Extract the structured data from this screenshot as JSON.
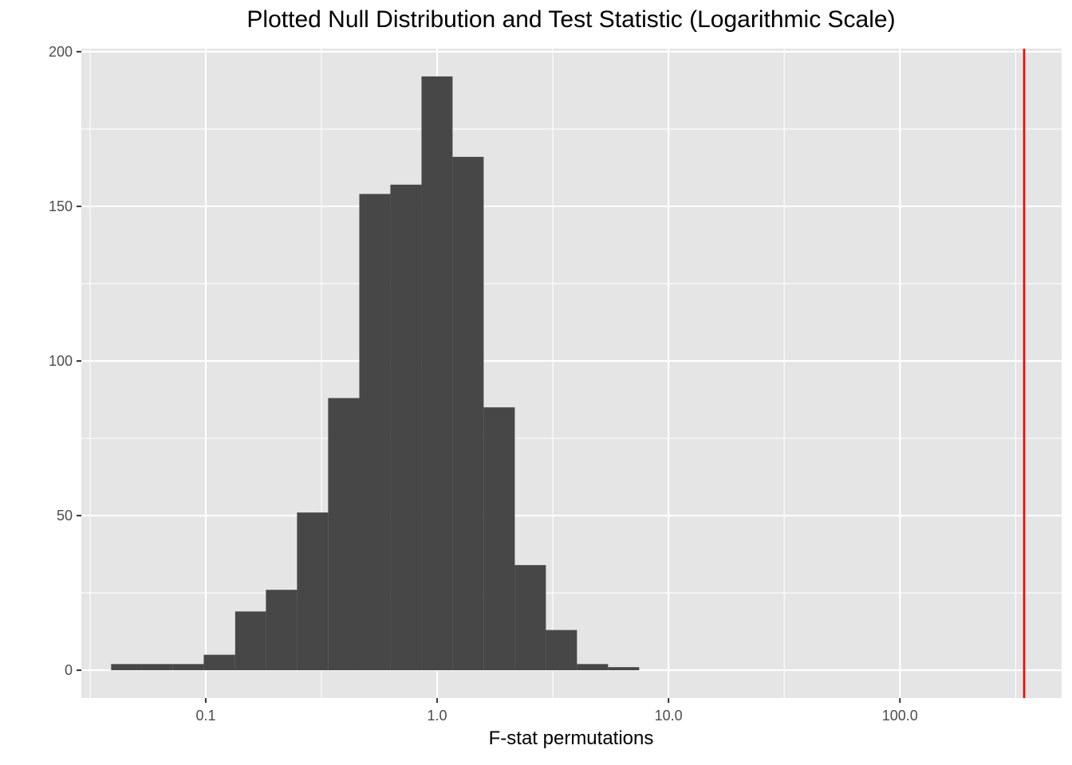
{
  "chart_data": {
    "type": "bar",
    "title": "Plotted Null Distribution and Test Statistic (Logarithmic Scale)",
    "xlabel": "F-stat permutations",
    "ylabel": "",
    "x_scale": "log10",
    "xlim": [
      0.029,
      500
    ],
    "ylim": [
      -9,
      201
    ],
    "x_ticks": [
      0.1,
      1,
      10,
      100
    ],
    "x_tick_labels": [
      "0.1",
      "1.0",
      "10.0",
      "100.0"
    ],
    "y_ticks": [
      0,
      50,
      100,
      150,
      200
    ],
    "y_tick_labels": [
      "0",
      "50",
      "100",
      "150",
      "200"
    ],
    "grid": true,
    "bin_log_width": 0.135,
    "bins": [
      {
        "x_start": 0.039,
        "x_end": 0.053,
        "count": 2
      },
      {
        "x_start": 0.053,
        "x_end": 0.072,
        "count": 2
      },
      {
        "x_start": 0.072,
        "x_end": 0.098,
        "count": 2
      },
      {
        "x_start": 0.098,
        "x_end": 0.134,
        "count": 5
      },
      {
        "x_start": 0.134,
        "x_end": 0.182,
        "count": 19
      },
      {
        "x_start": 0.182,
        "x_end": 0.248,
        "count": 26
      },
      {
        "x_start": 0.248,
        "x_end": 0.338,
        "count": 51
      },
      {
        "x_start": 0.338,
        "x_end": 0.461,
        "count": 88
      },
      {
        "x_start": 0.461,
        "x_end": 0.628,
        "count": 154
      },
      {
        "x_start": 0.628,
        "x_end": 0.856,
        "count": 157
      },
      {
        "x_start": 0.856,
        "x_end": 1.166,
        "count": 192
      },
      {
        "x_start": 1.166,
        "x_end": 1.589,
        "count": 166
      },
      {
        "x_start": 1.589,
        "x_end": 2.166,
        "count": 85
      },
      {
        "x_start": 2.166,
        "x_end": 2.951,
        "count": 34
      },
      {
        "x_start": 2.951,
        "x_end": 4.021,
        "count": 13
      },
      {
        "x_start": 4.021,
        "x_end": 5.48,
        "count": 2
      },
      {
        "x_start": 5.48,
        "x_end": 7.47,
        "count": 1
      }
    ],
    "test_statistic": 344,
    "colors": {
      "panel_background": "#e5e5e5",
      "grid": "#ffffff",
      "bar_fill": "#474747",
      "test_statistic_line": "#ff0000",
      "axis_text": "#4d4d4d"
    }
  }
}
